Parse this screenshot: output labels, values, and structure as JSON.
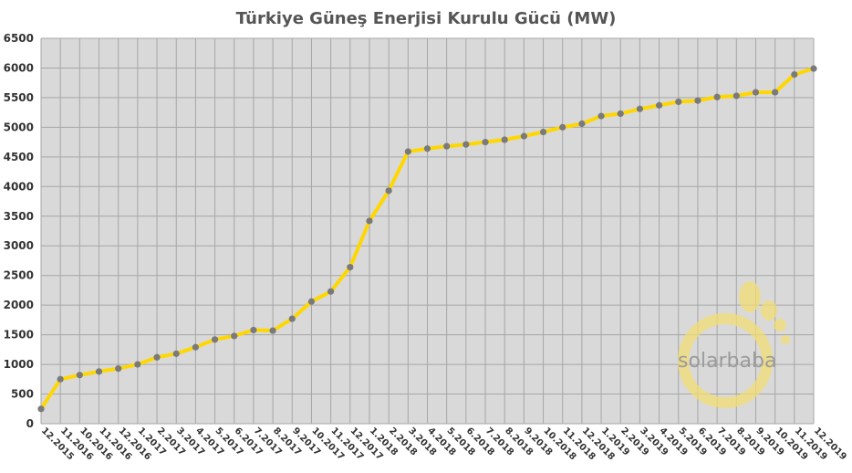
{
  "chart_data": {
    "type": "line",
    "title": "Türkiye Güneş Enerjisi Kurulu Gücü (MW)",
    "xlabel": "",
    "ylabel": "",
    "ylim": [
      0,
      6500
    ],
    "yticks": [
      0,
      500,
      1000,
      1500,
      2000,
      2500,
      3000,
      3500,
      4000,
      4500,
      5000,
      5500,
      6000,
      6500
    ],
    "grid": true,
    "categories": [
      "12.2015",
      "11.2016",
      "10.2016",
      "11.2016",
      "12.2016",
      "1.2017",
      "2.2017",
      "3.2017",
      "4.2017",
      "5.2017",
      "6.2017",
      "7.2017",
      "8.2017",
      "9.2017",
      "10.2017",
      "11.2017",
      "12.2017",
      "1.2018",
      "2.2018",
      "3.2018",
      "4.2018",
      "5.2018",
      "6.2018",
      "7.2018",
      "8.2018",
      "9.2018",
      "10.2018",
      "11.2018",
      "12.2018",
      "1.2019",
      "2.2019",
      "3.2019",
      "4.2019",
      "5.2019",
      "6.2019",
      "7.2019",
      "8.2019",
      "9.2019",
      "10.2019",
      "11.2019",
      "12.2019"
    ],
    "series": [
      {
        "values": [
          249,
          750,
          820,
          880,
          930,
          1000,
          1120,
          1180,
          1290,
          1420,
          1480,
          1580,
          1570,
          1770,
          2060,
          2230,
          2640,
          3420,
          3930,
          4590,
          4640,
          4680,
          4710,
          4750,
          4790,
          4850,
          4920,
          5000,
          5060,
          5190,
          5230,
          5310,
          5370,
          5430,
          5450,
          5510,
          5530,
          5590,
          5590,
          5890,
          5990
        ],
        "color": "#ffd700",
        "marker_color": "#7a7a7a"
      }
    ]
  },
  "watermark": {
    "text": "solarbaba",
    "color": "#f2dc73"
  },
  "colors": {
    "plot_background": "#d9d9d9",
    "grid": "#a6a6a6",
    "line": "#ffd700",
    "marker": "#7a7a7a"
  }
}
